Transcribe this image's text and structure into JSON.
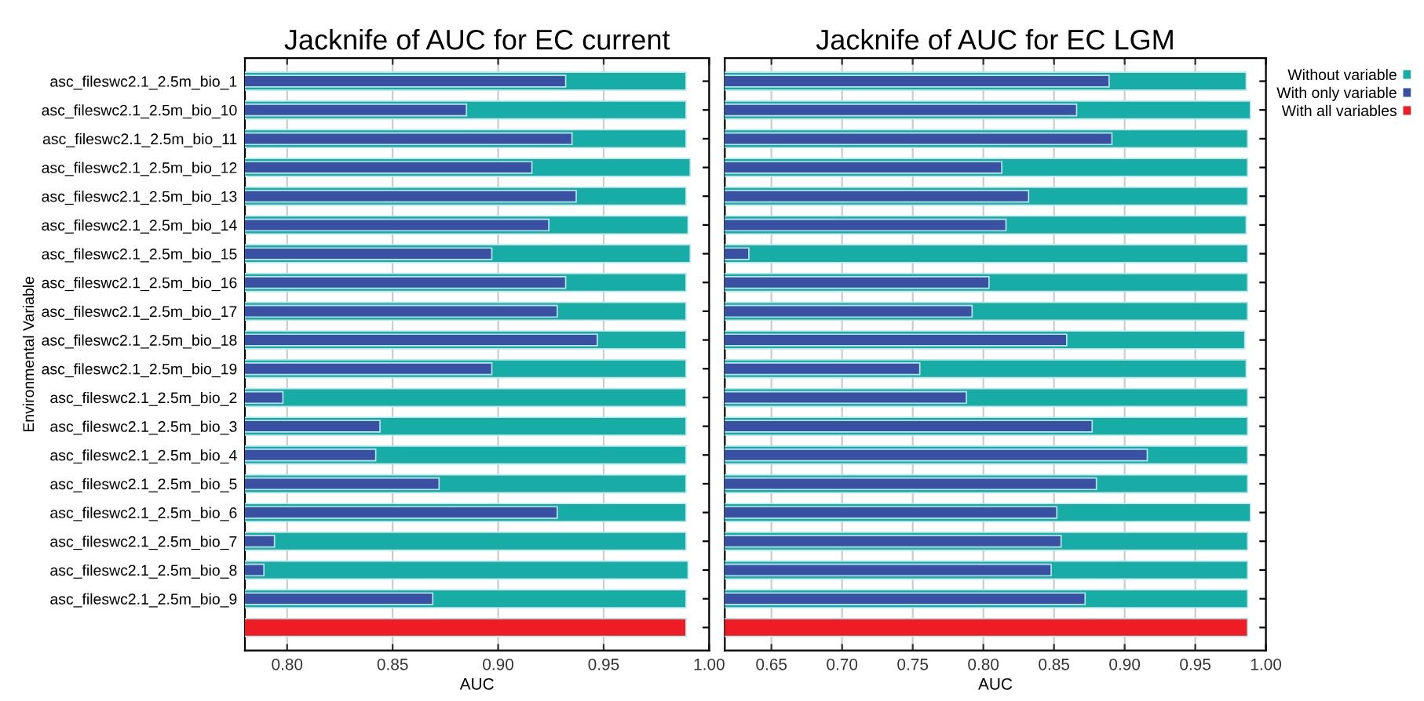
{
  "chart_data": [
    {
      "type": "bar",
      "orientation": "horizontal",
      "title": "Jacknife of AUC for EC current",
      "xlabel": "AUC",
      "ylabel": "Environmental Variable",
      "categories": [
        "asc_fileswc2.1_2.5m_bio_1",
        "asc_fileswc2.1_2.5m_bio_10",
        "asc_fileswc2.1_2.5m_bio_11",
        "asc_fileswc2.1_2.5m_bio_12",
        "asc_fileswc2.1_2.5m_bio_13",
        "asc_fileswc2.1_2.5m_bio_14",
        "asc_fileswc2.1_2.5m_bio_15",
        "asc_fileswc2.1_2.5m_bio_16",
        "asc_fileswc2.1_2.5m_bio_17",
        "asc_fileswc2.1_2.5m_bio_18",
        "asc_fileswc2.1_2.5m_bio_19",
        "asc_fileswc2.1_2.5m_bio_2",
        "asc_fileswc2.1_2.5m_bio_3",
        "asc_fileswc2.1_2.5m_bio_4",
        "asc_fileswc2.1_2.5m_bio_5",
        "asc_fileswc2.1_2.5m_bio_6",
        "asc_fileswc2.1_2.5m_bio_7",
        "asc_fileswc2.1_2.5m_bio_8",
        "asc_fileswc2.1_2.5m_bio_9",
        null
      ],
      "series": [
        {
          "color": "#18aca6",
          "values": [
            0.989,
            0.989,
            0.989,
            0.991,
            0.989,
            0.99,
            0.991,
            0.989,
            0.989,
            0.989,
            0.989,
            0.989,
            0.989,
            0.989,
            0.989,
            0.989,
            0.989,
            0.99,
            0.989,
            null
          ]
        },
        {
          "color": "#3a51a3",
          "values": [
            0.932,
            0.885,
            0.935,
            0.916,
            0.937,
            0.924,
            0.897,
            0.932,
            0.928,
            0.947,
            0.897,
            0.798,
            0.844,
            0.842,
            0.872,
            0.928,
            0.794,
            0.789,
            0.869,
            null
          ]
        },
        {
          "color": "#ee1c25",
          "values": [
            null,
            null,
            null,
            null,
            null,
            null,
            null,
            null,
            null,
            null,
            null,
            null,
            null,
            null,
            null,
            null,
            null,
            null,
            null,
            0.989
          ]
        }
      ],
      "xlim": [
        0.78,
        1.0
      ],
      "xticks": [
        {
          "value": 0.8,
          "label": "0.80"
        },
        {
          "value": 0.85,
          "label": "0.85"
        },
        {
          "value": 0.9,
          "label": "0.90"
        },
        {
          "value": 0.95,
          "label": "0.95"
        },
        {
          "value": 1.0,
          "label": "1.00"
        }
      ],
      "grid": "x"
    },
    {
      "type": "bar",
      "orientation": "horizontal",
      "title": "Jacknife of AUC for EC LGM",
      "xlabel": "AUC",
      "categories": [
        null,
        null,
        null,
        null,
        null,
        null,
        null,
        null,
        null,
        null,
        null,
        null,
        null,
        null,
        null,
        null,
        null,
        null,
        null,
        null
      ],
      "series": [
        {
          "name": "Without variable",
          "color": "#18aca6",
          "values": [
            0.986,
            0.989,
            0.987,
            0.987,
            0.987,
            0.986,
            0.987,
            0.987,
            0.987,
            0.985,
            0.986,
            0.987,
            0.987,
            0.987,
            0.987,
            0.989,
            0.987,
            0.987,
            0.987,
            null
          ]
        },
        {
          "name": "With only variable",
          "color": "#3a51a3",
          "values": [
            0.889,
            0.866,
            0.891,
            0.813,
            0.832,
            0.816,
            0.634,
            0.804,
            0.792,
            0.859,
            0.755,
            0.788,
            0.877,
            0.916,
            0.88,
            0.852,
            0.855,
            0.848,
            0.872,
            null
          ]
        },
        {
          "name": "With all variables",
          "color": "#ee1c25",
          "values": [
            null,
            null,
            null,
            null,
            null,
            null,
            null,
            null,
            null,
            null,
            null,
            null,
            null,
            null,
            null,
            null,
            null,
            null,
            null,
            0.987
          ]
        }
      ],
      "xlim": [
        0.617,
        1.0
      ],
      "xticks": [
        {
          "value": 0.65,
          "label": "0.65"
        },
        {
          "value": 0.7,
          "label": "0.70"
        },
        {
          "value": 0.75,
          "label": "0.75"
        },
        {
          "value": 0.8,
          "label": "0.80"
        },
        {
          "value": 0.85,
          "label": "0.85"
        },
        {
          "value": 0.9,
          "label": "0.90"
        },
        {
          "value": 0.95,
          "label": "0.95"
        },
        {
          "value": 1.0,
          "label": "1.00"
        }
      ],
      "grid": "x",
      "tick_labels": "x",
      "legend": "top right"
    }
  ]
}
